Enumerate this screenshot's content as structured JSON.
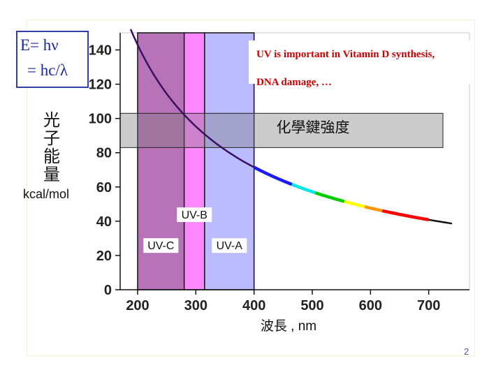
{
  "formula": {
    "line1": "E= hν",
    "line2": "= hc/λ"
  },
  "page_number": "2",
  "chart_data": {
    "type": "line",
    "title": "",
    "xlabel": "波長 , nm",
    "ylabel": "光子能量",
    "yunit": "kcal/mol",
    "xlim": [
      170,
      770
    ],
    "ylim": [
      0,
      150
    ],
    "xticks": [
      200,
      300,
      400,
      500,
      600,
      700
    ],
    "yticks": [
      0,
      20,
      40,
      60,
      80,
      100,
      120,
      140
    ],
    "grid": false,
    "series": [
      {
        "x": [
          190,
          220,
          250,
          280,
          300,
          330,
          360,
          400,
          430,
          470,
          520,
          560,
          600,
          650,
          700,
          740
        ],
        "y": [
          149,
          128.8,
          114.3,
          102.1,
          95.3,
          86.6,
          79.4,
          71.5,
          66.5,
          60.8,
          55.0,
          51.1,
          47.6,
          44.0,
          40.8,
          38.6
        ]
      }
    ],
    "color_segments": [
      {
        "from": 400,
        "to": 465,
        "color": "#1a1aff"
      },
      {
        "from": 465,
        "to": 505,
        "color": "#00e5e5"
      },
      {
        "from": 505,
        "to": 555,
        "color": "#00cc00"
      },
      {
        "from": 555,
        "to": 590,
        "color": "#ffff00"
      },
      {
        "from": 590,
        "to": 620,
        "color": "#ff9900"
      },
      {
        "from": 620,
        "to": 700,
        "color": "#ff0000"
      }
    ],
    "bands": [
      {
        "label": "UV-C",
        "from": 200,
        "to": 280,
        "color": "#b873b8",
        "label_y": 26
      },
      {
        "label": "UV-B",
        "from": 280,
        "to": 315,
        "color": "#ff88ff",
        "label_y": 44
      },
      {
        "label": "UV-A",
        "from": 315,
        "to": 400,
        "color": "#bbbbff",
        "label_y": 26
      }
    ],
    "bond_energy_band": {
      "label": "化學鍵強度",
      "from": 83,
      "to": 103
    },
    "annotations": [
      {
        "text": "UV is important in Vitamin D synthesis,",
        "color": "#cc0000"
      },
      {
        "text": "DNA damage, …",
        "color": "#cc0000"
      }
    ]
  }
}
